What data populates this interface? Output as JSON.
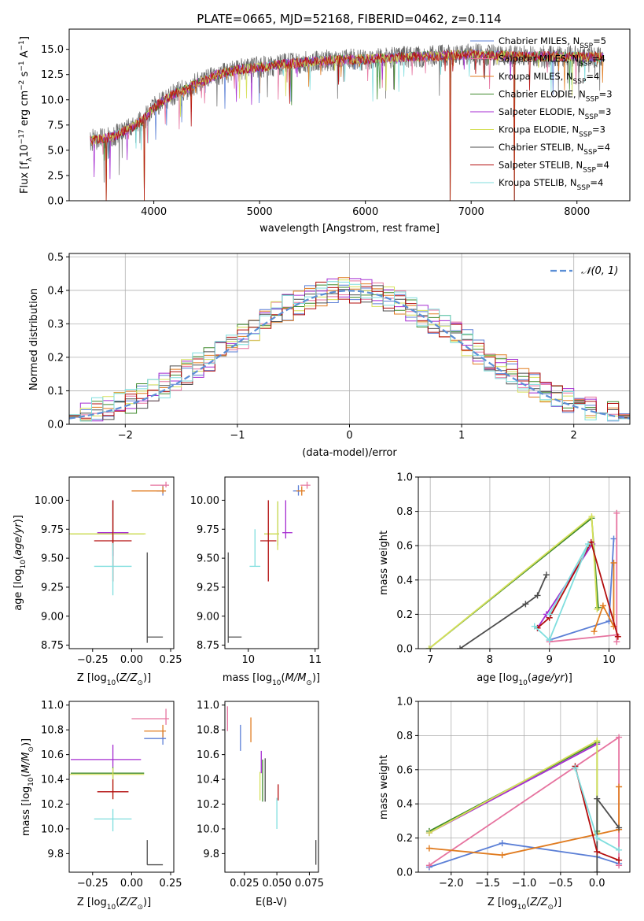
{
  "figure": {
    "title": "PLATE=0665, MJD=52168, FIBERID=0462, z=0.114"
  },
  "colors": {
    "Chabrier MILES": "#5b7fd6",
    "Salpeter MILES": "#e6739f",
    "Kroupa MILES": "#e07b1f",
    "Chabrier ELODIE": "#3f8a2c",
    "Salpeter ELODIE": "#a52bd1",
    "Kroupa ELODIE": "#d6e05a",
    "Chabrier STELIB": "#4d4d4d",
    "Salpeter STELIB": "#b30e0e",
    "Kroupa STELIB": "#7fdede"
  },
  "chart_data": [
    {
      "id": "spectrum",
      "type": "line",
      "title": "PLATE=0665, MJD=52168, FIBERID=0462, z=0.114",
      "xlabel": "wavelength [Angstrom, rest frame]",
      "ylabel": "Flux [f_λ 10^-17 erg cm^-2 s^-1 A^-1]",
      "xlim": [
        3200,
        8500
      ],
      "ylim": [
        0,
        17
      ],
      "xticks": [
        4000,
        5000,
        6000,
        7000,
        8000
      ],
      "yticks": [
        0.0,
        2.5,
        5.0,
        7.5,
        10.0,
        12.5,
        15.0
      ],
      "grid": false,
      "legend_position": "top-right",
      "continuum": {
        "x": [
          3400,
          3500,
          3600,
          3700,
          3800,
          3900,
          4000,
          4100,
          4200,
          4300,
          4400,
          4500,
          4600,
          4800,
          5000,
          5200,
          5500,
          5800,
          6000,
          6300,
          6600,
          7000,
          7500,
          8000,
          8250
        ],
        "y": [
          6.0,
          6.1,
          6.3,
          6.8,
          7.3,
          8.0,
          9.2,
          10.0,
          10.6,
          11.0,
          11.6,
          12.0,
          12.5,
          13.0,
          13.2,
          13.5,
          13.8,
          14.0,
          14.0,
          14.2,
          14.3,
          14.5,
          14.3,
          14.3,
          14.2
        ]
      },
      "drops": [
        {
          "x": 3550,
          "to": 0.0
        },
        {
          "x": 3910,
          "to": 0.0
        },
        {
          "x": 6800,
          "to": 0.0
        },
        {
          "x": 7410,
          "to": 0.0
        }
      ],
      "series": [
        {
          "name": "Chabrier MILES, N_SSP=5",
          "label_main": "Chabrier MILES, N",
          "label_sub": "SSP",
          "label_tail": "=5",
          "color": "#5b7fd6"
        },
        {
          "name": "Salpeter MILES, N_SSP=4",
          "label_main": "Salpeter MILES, N",
          "label_sub": "SSP",
          "label_tail": "=4",
          "color": "#e6739f"
        },
        {
          "name": "Kroupa MILES, N_SSP=4",
          "label_main": "Kroupa MILES, N",
          "label_sub": "SSP",
          "label_tail": "=4",
          "color": "#e07b1f"
        },
        {
          "name": "Chabrier ELODIE, N_SSP=3",
          "label_main": "Chabrier ELODIE, N",
          "label_sub": "SSP",
          "label_tail": "=3",
          "color": "#3f8a2c"
        },
        {
          "name": "Salpeter ELODIE, N_SSP=3",
          "label_main": "Salpeter ELODIE, N",
          "label_sub": "SSP",
          "label_tail": "=3",
          "color": "#a52bd1"
        },
        {
          "name": "Kroupa ELODIE, N_SSP=3",
          "label_main": "Kroupa ELODIE, N",
          "label_sub": "SSP",
          "label_tail": "=3",
          "color": "#d6e05a"
        },
        {
          "name": "Chabrier STELIB, N_SSP=4",
          "label_main": "Chabrier STELIB, N",
          "label_sub": "SSP",
          "label_tail": "=4",
          "color": "#4d4d4d"
        },
        {
          "name": "Salpeter STELIB, N_SSP=4",
          "label_main": "Salpeter STELIB, N",
          "label_sub": "SSP",
          "label_tail": "=4",
          "color": "#b30e0e"
        },
        {
          "name": "Kroupa STELIB, N_SSP=4",
          "label_main": "Kroupa STELIB, N",
          "label_sub": "SSP",
          "label_tail": "=4",
          "color": "#7fdede"
        }
      ]
    },
    {
      "id": "residuals",
      "type": "line",
      "xlabel": "(data-model)/error",
      "ylabel": "Normed distribution",
      "xlim": [
        -2.5,
        2.5
      ],
      "ylim": [
        0,
        0.51
      ],
      "xticks": [
        -2,
        -1,
        0,
        1,
        2
      ],
      "yticks": [
        0.0,
        0.1,
        0.2,
        0.3,
        0.4,
        0.5
      ],
      "grid": true,
      "legend_position": "top-right",
      "gaussian_label": "𝒩(0, 1)",
      "gaussian_color": "#5b8fd6",
      "bin_width": 0.1,
      "bins_start": -2.5
    },
    {
      "id": "age-vs-Z",
      "type": "scatter",
      "xlabel": "Z [log10(Z/Z⊙)]",
      "ylabel": "age [log10(age/yr)]",
      "xlim": [
        -0.4,
        0.27
      ],
      "ylim": [
        8.72,
        10.2
      ],
      "xticks": [
        -0.25,
        0.0,
        0.25
      ],
      "yticks": [
        8.75,
        9.0,
        9.25,
        9.5,
        9.75,
        10.0
      ],
      "crosses": [
        {
          "series": "Chabrier MILES",
          "x": 0.2,
          "y": 10.08,
          "xerr": [
            0.04,
            0.02
          ],
          "yerr": [
            0.04,
            0.05
          ]
        },
        {
          "series": "Salpeter MILES",
          "x": 0.22,
          "y": 10.13,
          "xerr": [
            0.1,
            0.02
          ],
          "yerr": [
            0.02,
            0.03
          ]
        },
        {
          "series": "Kroupa MILES",
          "x": 0.2,
          "y": 10.08,
          "xerr": [
            0.2,
            0.02
          ],
          "yerr": [
            0.02,
            0.04
          ]
        },
        {
          "series": "Chabrier ELODIE",
          "x": -0.12,
          "y": 9.71,
          "xerr": [
            0.27,
            0.2
          ],
          "yerr": [
            0.1,
            0.28
          ]
        },
        {
          "series": "Salpeter ELODIE",
          "x": -0.12,
          "y": 9.72,
          "xerr": [
            0.1,
            0.1
          ],
          "yerr": [
            0.2,
            0.28
          ]
        },
        {
          "series": "Kroupa ELODIE",
          "x": -0.12,
          "y": 9.71,
          "xerr": [
            0.28,
            0.21
          ],
          "yerr": [
            0.15,
            0.27
          ]
        },
        {
          "series": "Chabrier STELIB",
          "x": 0.1,
          "y": 8.82,
          "xerr": [
            0.0,
            0.1
          ],
          "yerr": [
            0.05,
            0.73
          ]
        },
        {
          "series": "Salpeter STELIB",
          "x": -0.12,
          "y": 9.65,
          "xerr": [
            0.12,
            0.12
          ],
          "yerr": [
            0.35,
            0.35
          ]
        },
        {
          "series": "Kroupa STELIB",
          "x": -0.12,
          "y": 9.43,
          "xerr": [
            0.12,
            0.12
          ],
          "yerr": [
            0.25,
            0.2
          ]
        }
      ]
    },
    {
      "id": "age-vs-mass",
      "type": "scatter",
      "xlabel": "mass [log10(M/M⊙)]",
      "ylabel": "",
      "xlim": [
        9.65,
        11.05
      ],
      "ylim": [
        8.72,
        10.2
      ],
      "xticks": [
        10,
        11
      ],
      "yticks": [
        8.75,
        9.0,
        9.25,
        9.5,
        9.75,
        10.0
      ],
      "crosses": [
        {
          "series": "Chabrier MILES",
          "x": 10.75,
          "y": 10.08,
          "xerr": [
            0.08,
            0.03
          ],
          "yerr": [
            0.04,
            0.05
          ]
        },
        {
          "series": "Salpeter MILES",
          "x": 10.88,
          "y": 10.13,
          "xerr": [
            0.1,
            0.05
          ],
          "yerr": [
            0.03,
            0.03
          ]
        },
        {
          "series": "Kroupa MILES",
          "x": 10.8,
          "y": 10.08,
          "xerr": [
            0.08,
            0.05
          ],
          "yerr": [
            0.04,
            0.04
          ]
        },
        {
          "series": "Chabrier ELODIE",
          "x": 10.44,
          "y": 9.71,
          "xerr": [
            0.2,
            0.02
          ],
          "yerr": [
            0.1,
            0.28
          ]
        },
        {
          "series": "Salpeter ELODIE",
          "x": 10.56,
          "y": 9.72,
          "xerr": [
            0.05,
            0.1
          ],
          "yerr": [
            0.05,
            0.28
          ]
        },
        {
          "series": "Kroupa ELODIE",
          "x": 10.44,
          "y": 9.71,
          "xerr": [
            0.2,
            0.02
          ],
          "yerr": [
            0.14,
            0.28
          ]
        },
        {
          "series": "Chabrier STELIB",
          "x": 9.7,
          "y": 8.82,
          "xerr": [
            0.0,
            0.2
          ],
          "yerr": [
            0.05,
            0.73
          ]
        },
        {
          "series": "Salpeter STELIB",
          "x": 10.3,
          "y": 9.65,
          "xerr": [
            0.12,
            0.12
          ],
          "yerr": [
            0.35,
            0.35
          ]
        },
        {
          "series": "Kroupa STELIB",
          "x": 10.1,
          "y": 9.43,
          "xerr": [
            0.08,
            0.08
          ],
          "yerr": [
            0.0,
            0.32
          ]
        }
      ]
    },
    {
      "id": "weight-vs-age",
      "type": "line",
      "xlabel": "age [log10(age/yr)]",
      "ylabel": "mass weight",
      "xlim": [
        6.8,
        10.35
      ],
      "ylim": [
        0,
        1.0
      ],
      "xticks": [
        7,
        8,
        9,
        10
      ],
      "yticks": [
        0.0,
        0.2,
        0.4,
        0.6,
        0.8,
        1.0
      ],
      "grid": true,
      "series": [
        {
          "series": "Chabrier MILES",
          "x": [
            9.0,
            10.0,
            10.08
          ],
          "y": [
            0.05,
            0.16,
            0.64
          ]
        },
        {
          "series": "Salpeter MILES",
          "x": [
            9.0,
            10.13,
            10.13,
            10.13
          ],
          "y": [
            0.04,
            0.08,
            0.79,
            0.04
          ]
        },
        {
          "series": "Kroupa MILES",
          "x": [
            9.75,
            9.9,
            10.08,
            10.08
          ],
          "y": [
            0.1,
            0.25,
            0.13,
            0.5
          ]
        },
        {
          "series": "Chabrier ELODIE",
          "x": [
            6.98,
            9.71,
            9.82
          ],
          "y": [
            0.0,
            0.76,
            0.24
          ]
        },
        {
          "series": "Salpeter ELODIE",
          "x": [
            8.8,
            8.95,
            9.72
          ],
          "y": [
            0.12,
            0.2,
            0.61
          ]
        },
        {
          "series": "Kroupa ELODIE",
          "x": [
            6.98,
            9.71,
            9.8
          ],
          "y": [
            0.0,
            0.77,
            0.23
          ]
        },
        {
          "series": "Chabrier STELIB",
          "x": [
            7.5,
            8.6,
            8.8,
            8.95
          ],
          "y": [
            0.0,
            0.26,
            0.31,
            0.43
          ]
        },
        {
          "series": "Salpeter STELIB",
          "x": [
            8.8,
            9.0,
            9.7,
            10.15
          ],
          "y": [
            0.12,
            0.18,
            0.62,
            0.07
          ]
        },
        {
          "series": "Kroupa STELIB",
          "x": [
            8.75,
            9.0,
            9.65,
            9.0
          ],
          "y": [
            0.13,
            0.05,
            0.61,
            0.2
          ]
        }
      ]
    },
    {
      "id": "mass-vs-Z",
      "type": "scatter",
      "xlabel": "Z [log10(Z/Z⊙)]",
      "ylabel": "mass [log10(M/M⊙)]",
      "xlim": [
        -0.4,
        0.27
      ],
      "ylim": [
        9.65,
        11.03
      ],
      "xticks": [
        -0.25,
        0.0,
        0.25
      ],
      "yticks": [
        9.8,
        10.0,
        10.2,
        10.4,
        10.6,
        10.8,
        11.0
      ],
      "crosses": [
        {
          "series": "Chabrier MILES",
          "x": 0.2,
          "y": 10.73,
          "xerr": [
            0.12,
            0.02
          ],
          "yerr": [
            0.05,
            0.06
          ]
        },
        {
          "series": "Salpeter MILES",
          "x": 0.22,
          "y": 10.89,
          "xerr": [
            0.22,
            0.02
          ],
          "yerr": [
            0.05,
            0.08
          ]
        },
        {
          "series": "Kroupa MILES",
          "x": 0.2,
          "y": 10.79,
          "xerr": [
            0.12,
            0.02
          ],
          "yerr": [
            0.05,
            0.05
          ]
        },
        {
          "series": "Chabrier ELODIE",
          "x": -0.12,
          "y": 10.45,
          "xerr": [
            0.27,
            0.2
          ],
          "yerr": [
            0.05,
            0.05
          ]
        },
        {
          "series": "Salpeter ELODIE",
          "x": -0.12,
          "y": 10.56,
          "xerr": [
            0.27,
            0.18
          ],
          "yerr": [
            0.06,
            0.12
          ]
        },
        {
          "series": "Kroupa ELODIE",
          "x": -0.12,
          "y": 10.44,
          "xerr": [
            0.28,
            0.2
          ],
          "yerr": [
            0.2,
            0.05
          ]
        },
        {
          "series": "Chabrier STELIB",
          "x": 0.1,
          "y": 9.71,
          "xerr": [
            0.0,
            0.1
          ],
          "yerr": [
            0.0,
            0.2
          ]
        },
        {
          "series": "Salpeter STELIB",
          "x": -0.12,
          "y": 10.3,
          "xerr": [
            0.1,
            0.1
          ],
          "yerr": [
            0.06,
            0.1
          ]
        },
        {
          "series": "Kroupa STELIB",
          "x": -0.12,
          "y": 10.08,
          "xerr": [
            0.12,
            0.12
          ],
          "yerr": [
            0.1,
            0.08
          ]
        }
      ]
    },
    {
      "id": "mass-vs-ebv",
      "type": "scatter",
      "xlabel": "E(B-V)",
      "ylabel": "",
      "xlim": [
        0.01,
        0.082
      ],
      "ylim": [
        9.65,
        11.03
      ],
      "xticks": [
        0.025,
        0.05,
        0.075
      ],
      "xtick_labels": [
        "0.025",
        "0.050",
        "0.075"
      ],
      "yticks": [
        9.8,
        10.0,
        10.2,
        10.4,
        10.6,
        10.8,
        11.0
      ],
      "vlines": [
        {
          "series": "Chabrier MILES",
          "x": 0.022,
          "ymin": 10.63,
          "ymax": 10.84
        },
        {
          "series": "Salpeter MILES",
          "x": 0.012,
          "ymin": 10.79,
          "ymax": 10.99
        },
        {
          "series": "Kroupa MILES",
          "x": 0.03,
          "ymin": 10.7,
          "ymax": 10.9
        },
        {
          "series": "Chabrier ELODIE",
          "x": 0.039,
          "ymin": 10.22,
          "ymax": 10.56
        },
        {
          "series": "Salpeter ELODIE",
          "x": 0.038,
          "ymin": 10.45,
          "ymax": 10.63
        },
        {
          "series": "Kroupa ELODIE",
          "x": 0.037,
          "ymin": 10.23,
          "ymax": 10.46
        },
        {
          "series": "Chabrier STELIB",
          "x": 0.041,
          "ymin": 10.22,
          "ymax": 10.57
        },
        {
          "series": "Salpeter STELIB",
          "x": 0.051,
          "ymin": 10.23,
          "ymax": 10.36
        },
        {
          "series": "Kroupa STELIB",
          "x": 0.05,
          "ymin": 10.0,
          "ymax": 10.25
        },
        {
          "series": "Chabrier STELIB",
          "x": 0.08,
          "ymin": 9.71,
          "ymax": 9.91
        }
      ]
    },
    {
      "id": "weight-vs-Z",
      "type": "line",
      "xlabel": "Z [log10(Z/Z⊙)]",
      "ylabel": "mass weight",
      "xlim": [
        -2.45,
        0.45
      ],
      "ylim": [
        0,
        1.0
      ],
      "xticks": [
        -2.0,
        -1.5,
        -1.0,
        -0.5,
        0.0
      ],
      "yticks": [
        0.0,
        0.2,
        0.4,
        0.6,
        0.8,
        1.0
      ],
      "grid": true,
      "series": [
        {
          "series": "Chabrier MILES",
          "x": [
            -2.3,
            -1.3,
            0.0,
            0.3
          ],
          "y": [
            0.03,
            0.17,
            0.09,
            0.05
          ]
        },
        {
          "series": "Salpeter MILES",
          "x": [
            -2.3,
            0.3,
            0.3
          ],
          "y": [
            0.04,
            0.79,
            0.04
          ]
        },
        {
          "series": "Kroupa MILES",
          "x": [
            -2.3,
            -1.3,
            0.3,
            0.3
          ],
          "y": [
            0.14,
            0.1,
            0.25,
            0.5
          ]
        },
        {
          "series": "Chabrier ELODIE",
          "x": [
            -2.3,
            0.0,
            0.0
          ],
          "y": [
            0.24,
            0.76,
            0.24
          ]
        },
        {
          "series": "Salpeter ELODIE",
          "x": [
            -2.3,
            0.0
          ],
          "y": [
            0.23,
            0.75
          ]
        },
        {
          "series": "Kroupa ELODIE",
          "x": [
            -2.3,
            0.0,
            0.0
          ],
          "y": [
            0.23,
            0.77,
            0.23
          ]
        },
        {
          "series": "Chabrier STELIB",
          "x": [
            0.0,
            0.0,
            0.3
          ],
          "y": [
            0.0,
            0.43,
            0.26
          ]
        },
        {
          "series": "Salpeter STELIB",
          "x": [
            -0.3,
            0.0,
            0.3
          ],
          "y": [
            0.62,
            0.12,
            0.07
          ]
        },
        {
          "series": "Kroupa STELIB",
          "x": [
            -0.3,
            0.0,
            0.3
          ],
          "y": [
            0.61,
            0.2,
            0.13
          ]
        }
      ]
    }
  ]
}
